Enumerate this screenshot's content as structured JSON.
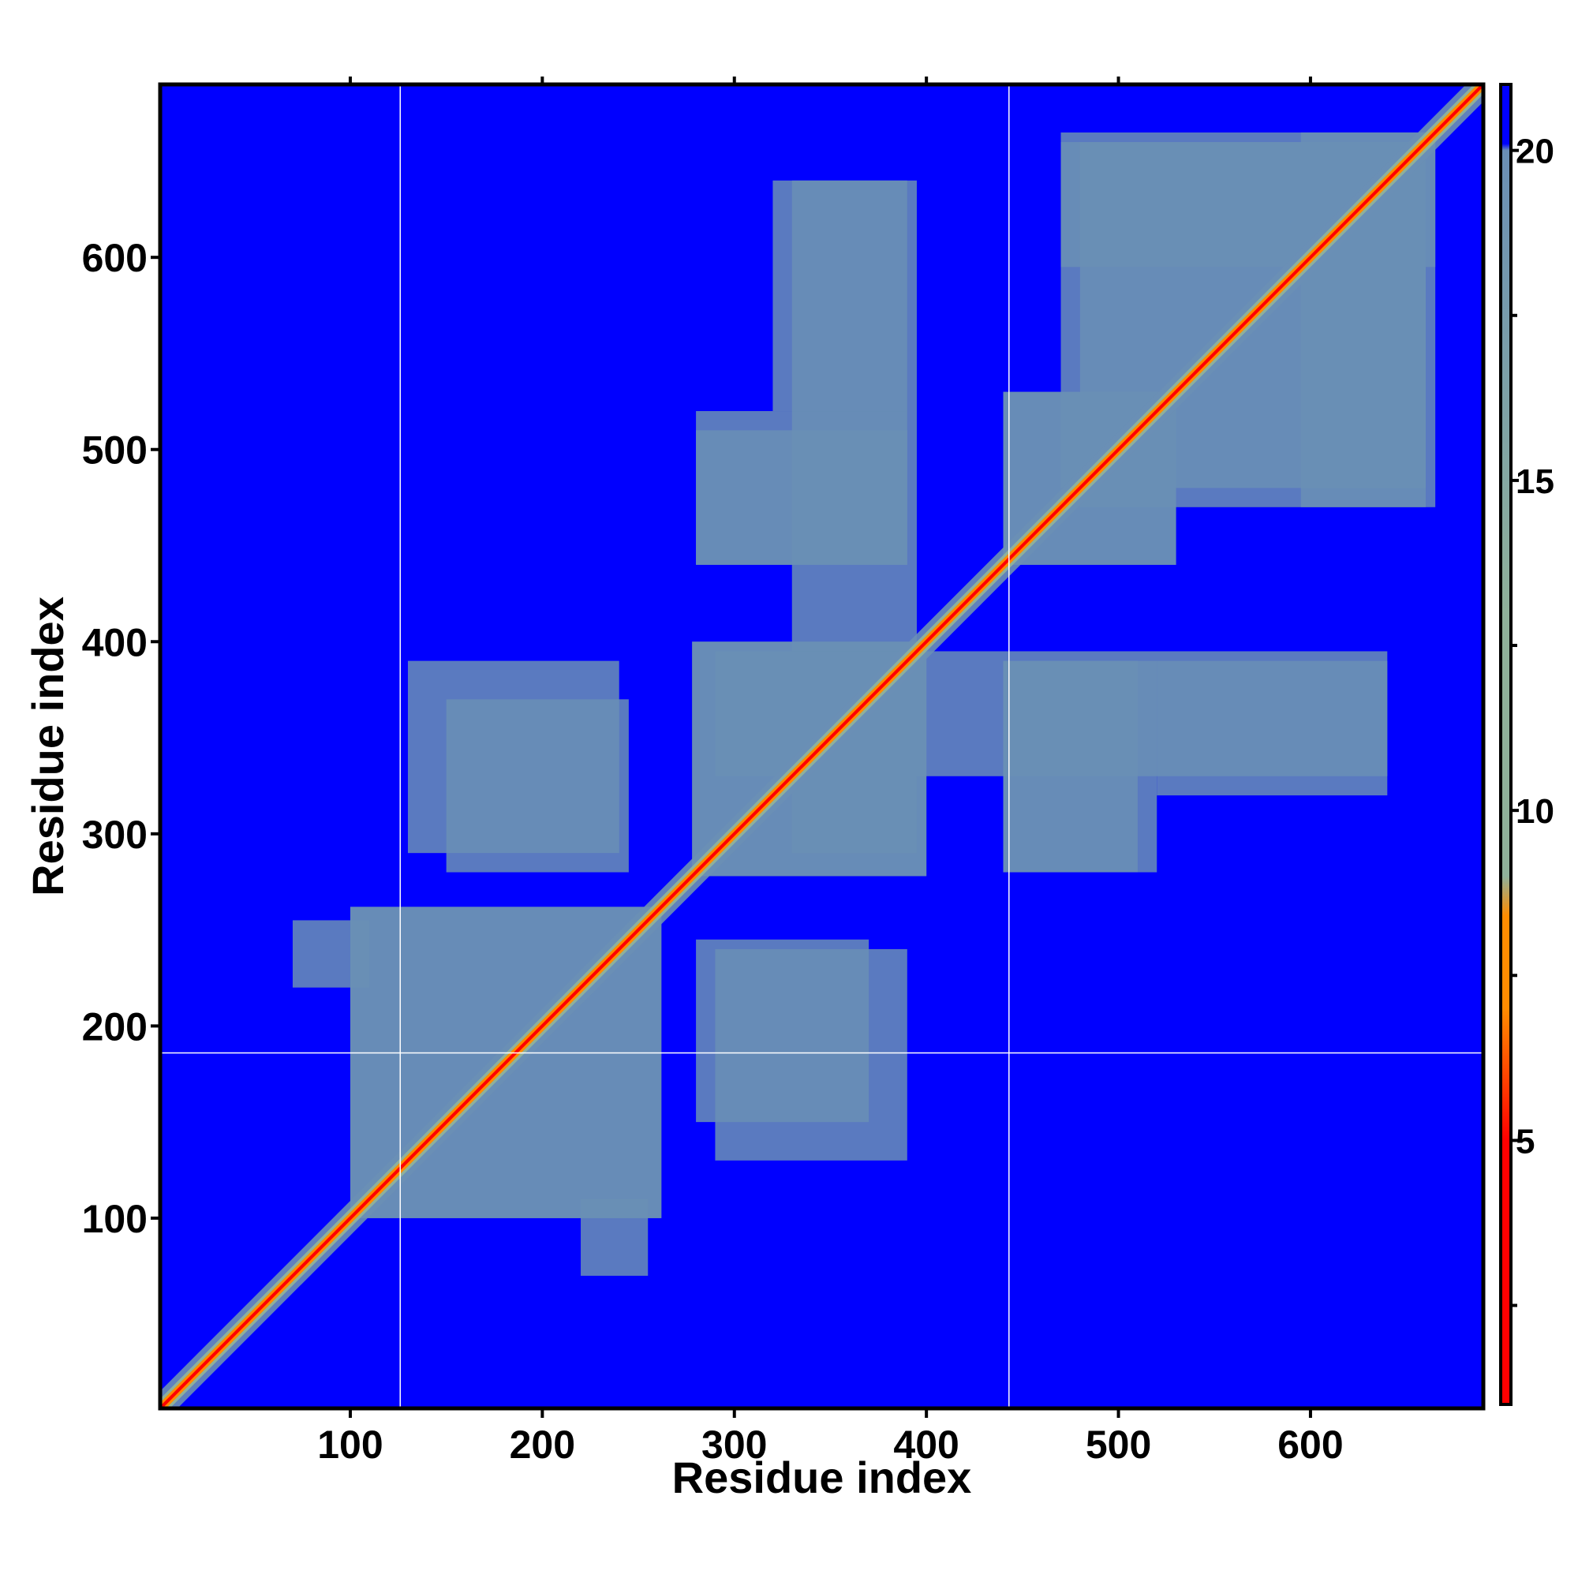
{
  "chart_data": {
    "type": "heatmap",
    "title": "",
    "xlabel": "Residue index",
    "ylabel": "Residue index",
    "xlim": [
      1,
      690
    ],
    "ylim": [
      1,
      690
    ],
    "x_ticks": [
      100,
      200,
      300,
      400,
      500,
      600
    ],
    "y_ticks": [
      100,
      200,
      300,
      400,
      500,
      600
    ],
    "x_tick_labels": [
      "100",
      "200",
      "300",
      "400",
      "500",
      "600"
    ],
    "y_tick_labels": [
      "100",
      "200",
      "300",
      "400",
      "500",
      "600"
    ],
    "domain_boundaries": {
      "vertical": [
        126,
        443
      ],
      "horizontal": [
        186
      ]
    },
    "colorbar": {
      "min": 1,
      "max": 21,
      "ticks": [
        5,
        10,
        15,
        20
      ],
      "tick_labels": [
        "5",
        "10",
        "15",
        "20"
      ],
      "colors": {
        "low": "#ff0000",
        "mid_low": "#ff8c00",
        "mid": "#8fb19a",
        "high": "#6a8fb5",
        "background": "#0000ff"
      }
    },
    "blocks": [
      {
        "x": [
          100,
          262
        ],
        "y": [
          100,
          262
        ],
        "value": 14
      },
      {
        "x": [
          278,
          400
        ],
        "y": [
          278,
          400
        ],
        "value": 14
      },
      {
        "x": [
          480,
          660
        ],
        "y": [
          470,
          660
        ],
        "value": 14
      },
      {
        "x": [
          440,
          530
        ],
        "y": [
          440,
          530
        ],
        "value": 15
      },
      {
        "x": [
          595,
          665
        ],
        "y": [
          470,
          665
        ],
        "value": 15
      },
      {
        "x": [
          280,
          390
        ],
        "y": [
          440,
          510
        ],
        "value": 17
      },
      {
        "x": [
          330,
          395
        ],
        "y": [
          290,
          640
        ],
        "value": 17
      },
      {
        "x": [
          440,
          520
        ],
        "y": [
          280,
          390
        ],
        "value": 17
      },
      {
        "x": [
          520,
          640
        ],
        "y": [
          320,
          390
        ],
        "value": 18
      },
      {
        "x": [
          220,
          255
        ],
        "y": [
          70,
          110
        ],
        "value": 18
      },
      {
        "x": [
          280,
          370
        ],
        "y": [
          150,
          245
        ],
        "value": 18
      },
      {
        "x": [
          130,
          240
        ],
        "y": [
          290,
          390
        ],
        "value": 18
      }
    ]
  }
}
